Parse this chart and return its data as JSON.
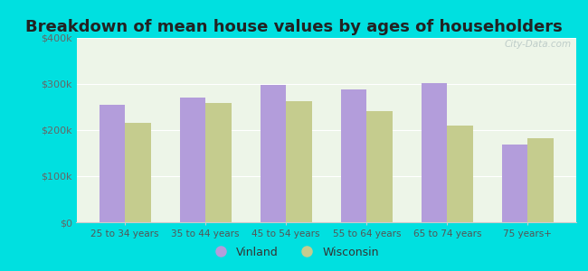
{
  "title": "Breakdown of mean house values by ages of householders",
  "categories": [
    "25 to 34 years",
    "35 to 44 years",
    "45 to 54 years",
    "55 to 64 years",
    "65 to 74 years",
    "75 years+"
  ],
  "vinland": [
    255000,
    270000,
    298000,
    288000,
    302000,
    168000
  ],
  "wisconsin": [
    215000,
    258000,
    262000,
    242000,
    210000,
    182000
  ],
  "vinland_color": "#b39ddb",
  "wisconsin_color": "#c5cc8e",
  "background_outer": "#00e0e0",
  "background_inner": "#e8f5e9",
  "title_fontsize": 13,
  "legend_labels": [
    "Vinland",
    "Wisconsin"
  ],
  "ylim": [
    0,
    400000
  ],
  "yticks": [
    0,
    100000,
    200000,
    300000,
    400000
  ],
  "ytick_labels": [
    "$0",
    "$100k",
    "$200k",
    "$300k",
    "$400k"
  ],
  "bar_width": 0.32,
  "watermark": "City-Data.com"
}
